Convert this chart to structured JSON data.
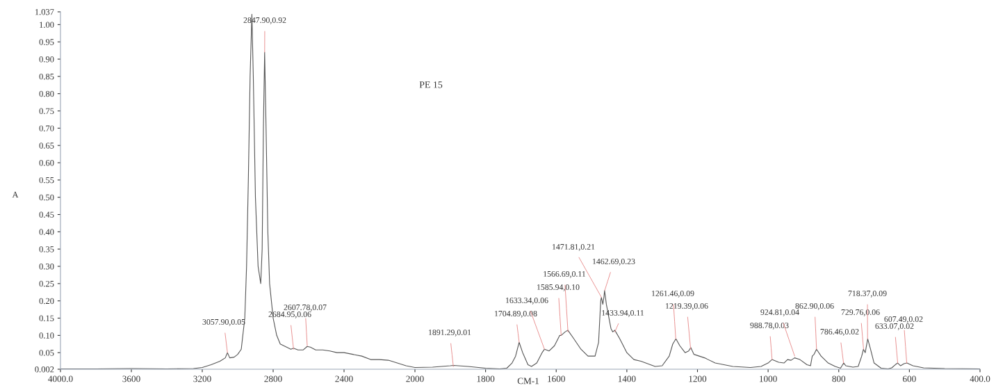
{
  "chart_data": [
    {
      "type": "line",
      "ylabel": "A",
      "x": [
        4000,
        3800,
        3600,
        3400,
        3250,
        3200,
        3150,
        3100,
        3070,
        3058,
        3045,
        3020,
        3000,
        2980,
        2960,
        2950,
        2940,
        2930,
        2920,
        2912,
        2900,
        2885,
        2870,
        2862,
        2855,
        2848,
        2840,
        2830,
        2820,
        2800,
        2780,
        2760,
        2720,
        2700,
        2685,
        2660,
        2630,
        2608,
        2590,
        2560,
        2520,
        2480,
        2440,
        2400,
        2350,
        2300,
        2250,
        2200,
        2150,
        2100,
        2050,
        2000
      ],
      "series": [
        {
          "color": "#555555",
          "values": [
            0.003,
            0.003,
            0.004,
            0.003,
            0.004,
            0.007,
            0.015,
            0.025,
            0.035,
            0.05,
            0.035,
            0.037,
            0.045,
            0.06,
            0.15,
            0.3,
            0.55,
            0.85,
            1.03,
            0.85,
            0.5,
            0.3,
            0.25,
            0.35,
            0.7,
            0.92,
            0.7,
            0.4,
            0.25,
            0.15,
            0.1,
            0.075,
            0.065,
            0.06,
            0.063,
            0.058,
            0.058,
            0.068,
            0.066,
            0.058,
            0.058,
            0.055,
            0.05,
            0.05,
            0.045,
            0.04,
            0.03,
            0.03,
            0.028,
            0.02,
            0.012,
            0.007
          ]
        }
      ],
      "xlim": [
        4000,
        2000
      ],
      "xticks": [
        {
          "value": 4000,
          "label": "4000.0"
        },
        3600,
        3200,
        2800,
        2400,
        2000
      ],
      "ylim": [
        0.002,
        1.037
      ],
      "yticks": [
        0.002,
        0.05,
        {
          "value": 0.1,
          "label": "0.10"
        },
        0.15,
        {
          "value": 0.2,
          "label": "0.20"
        },
        0.25,
        {
          "value": 0.3,
          "label": "0.30"
        },
        0.35,
        {
          "value": 0.4,
          "label": "0.40"
        },
        0.45,
        {
          "value": 0.5,
          "label": "0.50"
        },
        0.55,
        {
          "value": 0.6,
          "label": "0.60"
        },
        0.65,
        {
          "value": 0.7,
          "label": "0.70"
        },
        0.75,
        {
          "value": 0.8,
          "label": "0.80"
        },
        0.85,
        {
          "value": 0.9,
          "label": "0.90"
        },
        0.95,
        {
          "value": 1.0,
          "label": "1.00"
        },
        1.037
      ],
      "marker": "none",
      "line_style": "solid",
      "annotations": [
        {
          "text": "2847.90,0.92",
          "x": 2847.9,
          "y": 0.92
        },
        {
          "text": "3057.90,0.05",
          "x": 3057.9,
          "y": 0.05
        },
        {
          "text": "2684.95,0.06",
          "x": 2684.95,
          "y": 0.06
        },
        {
          "text": "2607.78,0.07",
          "x": 2607.78,
          "y": 0.07
        }
      ]
    },
    {
      "type": "line",
      "title": "PE 15",
      "xlabel": "CM-1",
      "x": [
        2000,
        1950,
        1900,
        1891,
        1850,
        1800,
        1760,
        1740,
        1725,
        1715,
        1705,
        1695,
        1680,
        1670,
        1655,
        1640,
        1633,
        1620,
        1605,
        1590,
        1586,
        1575,
        1567,
        1550,
        1530,
        1510,
        1490,
        1480,
        1474,
        1472,
        1468,
        1465,
        1463,
        1458,
        1445,
        1440,
        1434,
        1420,
        1400,
        1380,
        1360,
        1320,
        1300,
        1280,
        1270,
        1261,
        1250,
        1235,
        1225,
        1219,
        1210,
        1180,
        1150,
        1100,
        1050,
        1020,
        1000,
        989,
        970,
        955,
        945,
        935,
        925,
        910,
        890,
        880,
        875,
        870,
        863,
        850,
        830,
        810,
        795,
        786,
        780,
        760,
        745,
        735,
        730,
        725,
        718,
        710,
        700,
        680,
        660,
        650,
        640,
        633,
        625,
        615,
        607,
        590,
        560,
        500,
        400
      ],
      "series": [
        {
          "color": "#555555",
          "values": [
            0.007,
            0.008,
            0.012,
            0.013,
            0.01,
            0.005,
            0.003,
            0.005,
            0.02,
            0.04,
            0.08,
            0.05,
            0.015,
            0.01,
            0.02,
            0.05,
            0.06,
            0.055,
            0.07,
            0.1,
            0.1,
            0.11,
            0.115,
            0.09,
            0.06,
            0.04,
            0.04,
            0.08,
            0.2,
            0.21,
            0.19,
            0.21,
            0.23,
            0.19,
            0.12,
            0.11,
            0.115,
            0.09,
            0.05,
            0.03,
            0.025,
            0.01,
            0.012,
            0.04,
            0.075,
            0.09,
            0.07,
            0.05,
            0.055,
            0.065,
            0.045,
            0.035,
            0.02,
            0.01,
            0.007,
            0.01,
            0.02,
            0.03,
            0.022,
            0.02,
            0.03,
            0.028,
            0.035,
            0.03,
            0.015,
            0.012,
            0.04,
            0.045,
            0.06,
            0.04,
            0.02,
            0.01,
            0.005,
            0.02,
            0.012,
            0.008,
            0.01,
            0.04,
            0.06,
            0.05,
            0.09,
            0.06,
            0.02,
            0.005,
            0.003,
            0.006,
            0.015,
            0.02,
            0.012,
            0.018,
            0.02,
            0.012,
            0.006,
            0.004,
            0.003
          ]
        }
      ],
      "xlim": [
        2000,
        400
      ],
      "xticks": [
        1800,
        1600,
        1400,
        1200,
        1000,
        800,
        600,
        {
          "value": 400,
          "label": "400.0"
        }
      ],
      "ylim": [
        0.002,
        1.037
      ],
      "tick_labels": "x",
      "marker": "none",
      "line_style": "solid",
      "annotations": [
        {
          "text": "1891.29,0.01",
          "x": 1891.29,
          "y": 0.01
        },
        {
          "text": "1704.89,0.08",
          "x": 1704.89,
          "y": 0.08
        },
        {
          "text": "1633.34,0.06",
          "x": 1633.34,
          "y": 0.06
        },
        {
          "text": "1585.94,0.10",
          "x": 1585.94,
          "y": 0.1
        },
        {
          "text": "1566.69,0.11",
          "x": 1566.69,
          "y": 0.11
        },
        {
          "text": "1471.81,0.21",
          "x": 1471.81,
          "y": 0.21
        },
        {
          "text": "1462.69,0.23",
          "x": 1462.69,
          "y": 0.23
        },
        {
          "text": "1433.94,0.11",
          "x": 1433.94,
          "y": 0.11
        },
        {
          "text": "1261.46,0.09",
          "x": 1261.46,
          "y": 0.09
        },
        {
          "text": "1219.39,0.06",
          "x": 1219.39,
          "y": 0.06
        },
        {
          "text": "988.78,0.03",
          "x": 988.78,
          "y": 0.03
        },
        {
          "text": "924.81,0.04",
          "x": 924.81,
          "y": 0.04
        },
        {
          "text": "862.90,0.06",
          "x": 862.9,
          "y": 0.06
        },
        {
          "text": "786.46,0.02",
          "x": 786.46,
          "y": 0.02
        },
        {
          "text": "729.76,0.06",
          "x": 729.76,
          "y": 0.06
        },
        {
          "text": "718.37,0.09",
          "x": 718.37,
          "y": 0.09
        },
        {
          "text": "607.49,0.02",
          "x": 607.49,
          "y": 0.02
        },
        {
          "text": "633.07,0.02",
          "x": 633.07,
          "y": 0.02
        }
      ]
    }
  ]
}
